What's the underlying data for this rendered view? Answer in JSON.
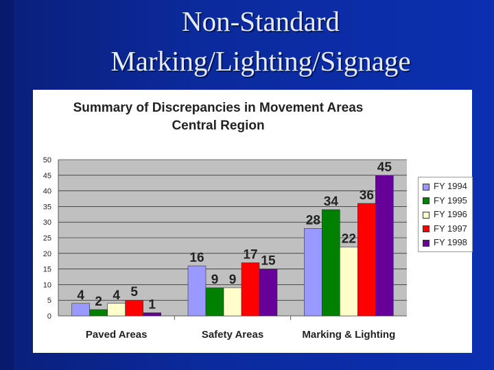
{
  "slide": {
    "title_line1": "Non-Standard",
    "title_line2": "Marking/Lighting/Signage"
  },
  "chart_data": {
    "type": "bar",
    "title": "Summary of Discrepancies in Movement Areas",
    "subtitle": "Central Region",
    "xlabel": "",
    "ylabel": "",
    "ylim": [
      0,
      50
    ],
    "yticks": [
      0,
      5,
      10,
      15,
      20,
      25,
      30,
      35,
      40,
      45,
      50
    ],
    "grid": true,
    "legend_position": "right",
    "categories": [
      "Paved Areas",
      "Safety Areas",
      "Marking & Lighting"
    ],
    "series": [
      {
        "name": "FY 1994",
        "color": "#9999ff",
        "values": [
          4,
          16,
          28
        ]
      },
      {
        "name": "FY 1995",
        "color": "#008000",
        "values": [
          2,
          9,
          34
        ]
      },
      {
        "name": "FY 1996",
        "color": "#ffffcc",
        "values": [
          4,
          9,
          22
        ]
      },
      {
        "name": "FY 1997",
        "color": "#ff0000",
        "values": [
          5,
          17,
          36
        ]
      },
      {
        "name": "FY 1998",
        "color": "#660099",
        "values": [
          1,
          15,
          45
        ]
      }
    ]
  }
}
